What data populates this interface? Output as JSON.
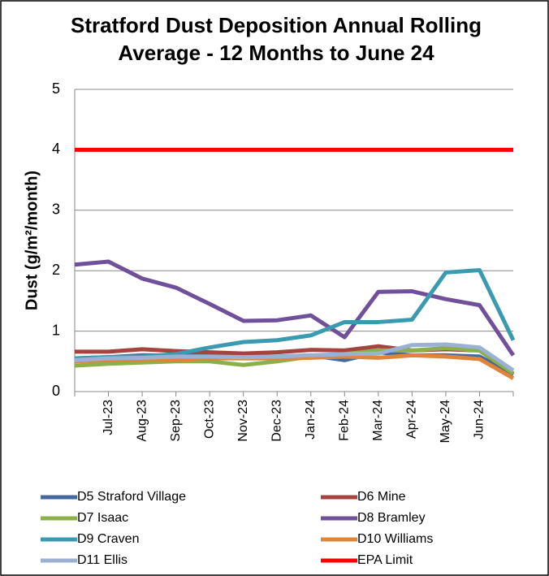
{
  "chart_data": {
    "type": "line",
    "title": "Stratford Dust Deposition Annual Rolling Average - 12 Months to June 24",
    "y_label": "Dust (g/m²/month)",
    "categories": [
      null,
      "Jul-23",
      "Aug-23",
      "Sep-23",
      "Oct-23",
      "Nov-23",
      "Dec-23",
      "Jan-24",
      "Feb-24",
      "Mar-24",
      "Apr-24",
      "May-24",
      "Jun-24",
      null
    ],
    "ylim": [
      0,
      5
    ],
    "yticks": [
      0,
      1,
      2,
      3,
      4,
      5
    ],
    "grid": true,
    "series": [
      {
        "name": "D5 Straford Village",
        "color": "#44699e",
        "values": [
          0.55,
          0.57,
          0.6,
          0.6,
          0.6,
          0.58,
          0.58,
          0.6,
          0.52,
          0.65,
          0.6,
          0.6,
          0.58,
          0.28
        ]
      },
      {
        "name": "D6 Mine",
        "color": "#a5443f",
        "values": [
          0.66,
          0.66,
          0.7,
          0.67,
          0.65,
          0.63,
          0.65,
          0.69,
          0.68,
          0.75,
          0.68,
          0.7,
          0.68,
          0.3
        ]
      },
      {
        "name": "D7 Isaac",
        "color": "#8bb04a",
        "values": [
          0.43,
          0.46,
          0.48,
          0.5,
          0.5,
          0.44,
          0.5,
          0.58,
          0.62,
          0.68,
          0.68,
          0.72,
          0.68,
          0.3
        ]
      },
      {
        "name": "D8 Bramley",
        "color": "#70509a",
        "values": [
          2.1,
          2.15,
          1.87,
          1.72,
          1.45,
          1.17,
          1.18,
          1.26,
          0.9,
          1.65,
          1.66,
          1.53,
          1.43,
          0.6
        ]
      },
      {
        "name": "D9 Craven",
        "color": "#3a9ab0",
        "values": [
          0.55,
          0.57,
          0.58,
          0.62,
          0.73,
          0.82,
          0.85,
          0.93,
          1.15,
          1.15,
          1.19,
          1.97,
          2.01,
          0.85
        ]
      },
      {
        "name": "D10 Williams",
        "color": "#e0843a",
        "values": [
          0.5,
          0.52,
          0.52,
          0.52,
          0.55,
          0.55,
          0.55,
          0.56,
          0.58,
          0.56,
          0.6,
          0.58,
          0.54,
          0.22
        ]
      },
      {
        "name": "D11 Ellis",
        "color": "#9bb1d4",
        "values": [
          0.52,
          0.55,
          0.56,
          0.58,
          0.58,
          0.57,
          0.58,
          0.6,
          0.62,
          0.63,
          0.77,
          0.78,
          0.73,
          0.35
        ]
      },
      {
        "name": "EPA Limit",
        "color": "#ff0000",
        "values": [
          4,
          4,
          4,
          4,
          4,
          4,
          4,
          4,
          4,
          4,
          4,
          4,
          4,
          4
        ]
      }
    ]
  }
}
